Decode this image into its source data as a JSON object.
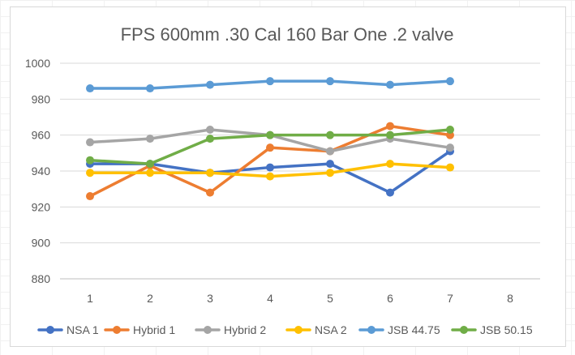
{
  "chart_data": {
    "type": "line",
    "title": "FPS 600mm .30 Cal 160 Bar One .2 valve",
    "xlabel": "",
    "ylabel": "",
    "x": [
      1,
      2,
      3,
      4,
      5,
      6,
      7
    ],
    "x_ticks": [
      "1",
      "2",
      "3",
      "4",
      "5",
      "6",
      "7",
      "8"
    ],
    "y_ticks": [
      "880",
      "900",
      "920",
      "940",
      "960",
      "980",
      "1000"
    ],
    "xlim": [
      1,
      8
    ],
    "ylim": [
      880,
      1000
    ],
    "grid": true,
    "legend": "bottom",
    "series": [
      {
        "name": "NSA 1",
        "color": "#4472C4",
        "values": [
          944,
          944,
          939,
          942,
          944,
          928,
          951
        ]
      },
      {
        "name": "Hybrid 1",
        "color": "#ED7D31",
        "values": [
          926,
          943,
          928,
          953,
          951,
          965,
          960
        ]
      },
      {
        "name": "Hybrid 2",
        "color": "#A5A5A5",
        "values": [
          956,
          958,
          963,
          960,
          951,
          958,
          953
        ]
      },
      {
        "name": "NSA 2",
        "color": "#FFC000",
        "values": [
          939,
          939,
          939,
          937,
          939,
          944,
          942
        ]
      },
      {
        "name": "JSB 44.75",
        "color": "#5B9BD5",
        "values": [
          986,
          986,
          988,
          990,
          990,
          988,
          990
        ]
      },
      {
        "name": "JSB 50.15",
        "color": "#70AD47",
        "values": [
          946,
          944,
          958,
          960,
          960,
          960,
          963
        ]
      }
    ]
  },
  "style": {
    "grid_color": "#d9d9d9",
    "axis_color": "#bfbfbf",
    "text_color": "#595959"
  }
}
